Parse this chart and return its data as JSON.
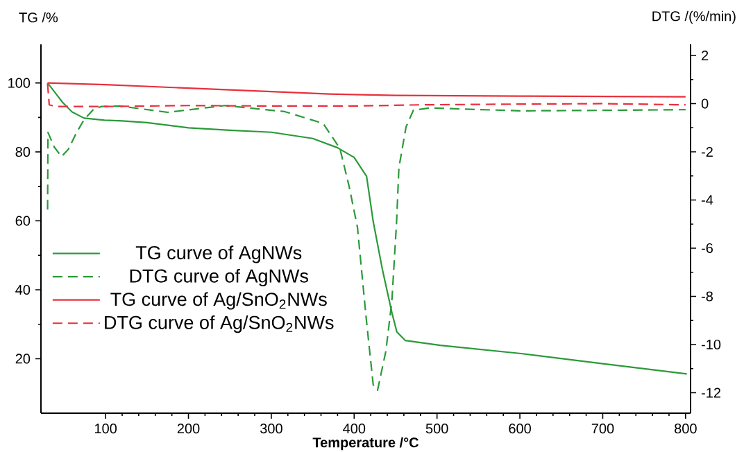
{
  "chart_data": {
    "type": "line",
    "xlabel": "Temperature /°C",
    "ylabel": "TG /%",
    "y2label": "DTG /(%/min)",
    "xlim": [
      22,
      806
    ],
    "xticks": [
      100,
      200,
      300,
      400,
      500,
      600,
      700,
      800
    ],
    "ylim": [
      4.2,
      111.2
    ],
    "yticks": [
      20,
      40,
      60,
      80,
      100
    ],
    "y2lim": [
      -12.85,
      2.46
    ],
    "y2ticks": [
      -12,
      -10,
      -8,
      -6,
      -4,
      -2,
      0,
      2
    ],
    "legend": "left",
    "series": [
      {
        "name": "TG curve  of AgNWs",
        "color": "#2a9a3a",
        "line_style": "solid",
        "x": [
          30,
          39.4,
          48,
          59.6,
          74,
          98.6,
          120,
          150,
          200,
          250,
          300,
          350,
          380,
          400,
          415,
          423,
          434,
          445.6,
          451.5,
          461.6,
          504,
          601.5,
          695,
          801.5
        ],
        "values": [
          100,
          97.1,
          94.4,
          91.6,
          89.8,
          89.2,
          89.0,
          88.5,
          87.0,
          86.3,
          85.7,
          83.9,
          81.2,
          78.4,
          72.9,
          59.8,
          46,
          33.3,
          27.8,
          25.3,
          23.9,
          21.5,
          18.7,
          15.6
        ]
      },
      {
        "name": "DTG curve  of AgNWs",
        "color": "#2a9a3a",
        "line_style": "dashed",
        "axis": "y2",
        "x": [
          30,
          30.5,
          38,
          46.7,
          55,
          65,
          74,
          85,
          95,
          117,
          175,
          244,
          316,
          362.5,
          382.8,
          394,
          404,
          414.5,
          423,
          428.2,
          438.3,
          445.5,
          451.2,
          454,
          462.6,
          471.4,
          491.6,
          600,
          700,
          800
        ],
        "values": [
          -4.4,
          -1.2,
          -1.8,
          -2.2,
          -1.9,
          -1.2,
          -0.67,
          -0.25,
          -0.12,
          -0.1,
          -0.36,
          -0.08,
          -0.33,
          -0.82,
          -1.86,
          -3.45,
          -5.14,
          -8.9,
          -11.67,
          -11.9,
          -10.27,
          -8.2,
          -4.92,
          -2.66,
          -0.97,
          -0.28,
          -0.18,
          -0.3,
          -0.28,
          -0.25
        ]
      },
      {
        "name": "TG curve  of Ag/SnO$_{2}$NWs",
        "color": "#e8303c",
        "line_style": "solid",
        "x": [
          30,
          100,
          200,
          300,
          370,
          450,
          600,
          800
        ],
        "values": [
          100,
          99.5,
          98.5,
          97.5,
          96.8,
          96.4,
          96.2,
          96.0
        ]
      },
      {
        "name": "DTG curve  of Ag/SnO$_{2}$NWs",
        "color": "#e8303c",
        "line_style": "dashed",
        "axis": "y2",
        "x": [
          30,
          32,
          40,
          100,
          200,
          300,
          400,
          480,
          600,
          700,
          800
        ],
        "values": [
          0.83,
          -0.05,
          -0.12,
          -0.12,
          -0.08,
          -0.1,
          -0.1,
          -0.05,
          -0.02,
          0.0,
          -0.05
        ]
      }
    ]
  }
}
